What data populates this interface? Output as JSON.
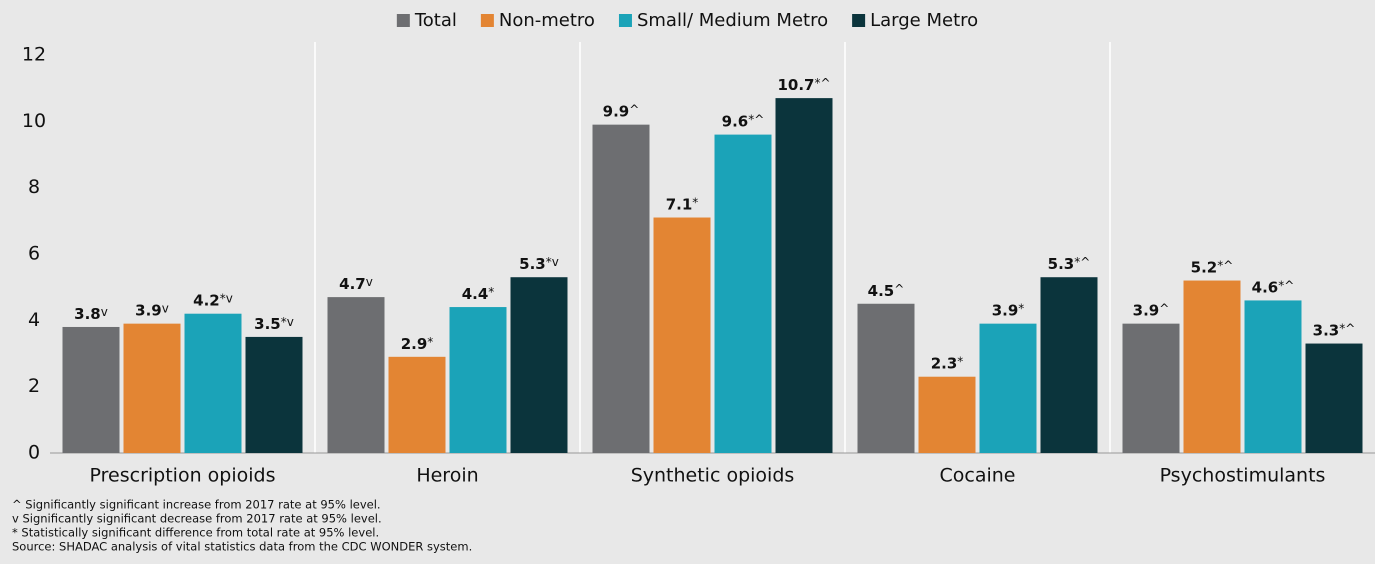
{
  "chart_data": {
    "type": "bar",
    "categories": [
      "Prescription opioids",
      "Heroin",
      "Synthetic opioids",
      "Cocaine",
      "Psychostimulants"
    ],
    "series": [
      {
        "name": "Total",
        "color": "#6d6e71",
        "values": [
          3.8,
          4.7,
          9.9,
          4.5,
          3.9
        ],
        "value_labels": [
          "3.8v",
          "4.7v",
          "9.9^",
          "4.5^",
          "3.9^"
        ]
      },
      {
        "name": "Non-metro",
        "color": "#e38533",
        "values": [
          3.9,
          2.9,
          7.1,
          2.3,
          5.2
        ],
        "value_labels": [
          "3.9v",
          "2.9*",
          "7.1*",
          "2.3*",
          "5.2*^"
        ]
      },
      {
        "name": "Small/ Medium Metro",
        "color": "#1ba3b8",
        "values": [
          4.2,
          4.4,
          9.6,
          3.9,
          4.6
        ],
        "value_labels": [
          "4.2*v",
          "4.4*",
          "9.6*^",
          "3.9*",
          "4.6*^"
        ]
      },
      {
        "name": "Large Metro",
        "color": "#0b343c",
        "values": [
          3.5,
          5.3,
          10.7,
          5.3,
          3.3
        ],
        "value_labels": [
          "3.5*v",
          "5.3*v",
          "10.7*^",
          "5.3*^",
          "3.3*^"
        ]
      }
    ],
    "ylim": [
      0,
      12
    ],
    "yticks": [
      0,
      2,
      4,
      6,
      8,
      10,
      12
    ],
    "grid": false,
    "legend": "top",
    "footnotes": [
      "^ Significantly significant increase from 2017 rate at 95% level.",
      "v Significantly significant decrease from 2017 rate at 95% level.",
      "* Statistically significant difference from total rate at 95% level.",
      "Source: SHADAC analysis of vital statistics data from the CDC WONDER system."
    ]
  }
}
